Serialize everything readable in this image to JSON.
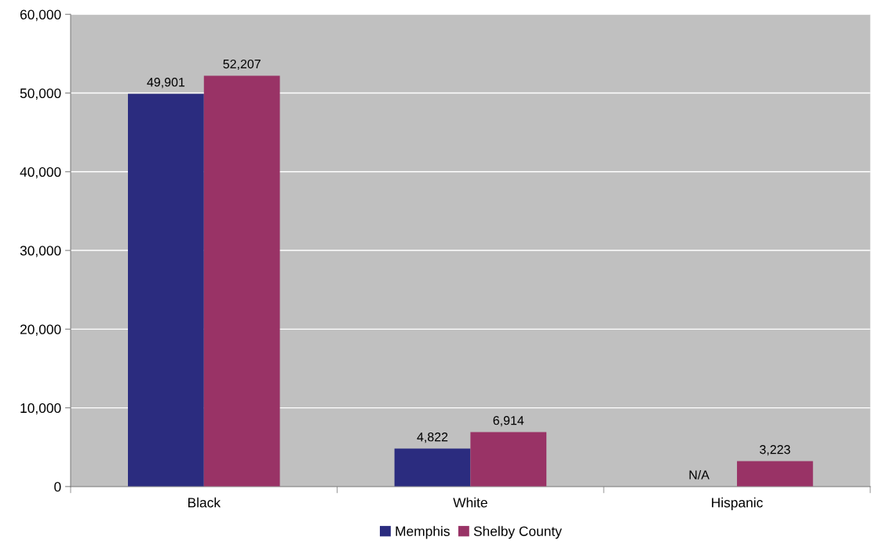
{
  "chart_data": {
    "type": "bar",
    "categories": [
      "Black",
      "White",
      "Hispanic"
    ],
    "series": [
      {
        "name": "Memphis",
        "color": "#2b2c7f",
        "values": [
          49901,
          4822,
          null
        ],
        "value_labels": [
          "49,901",
          "4,822",
          "N/A"
        ]
      },
      {
        "name": "Shelby County",
        "color": "#993366",
        "values": [
          52207,
          6914,
          3223
        ],
        "value_labels": [
          "52,207",
          "6,914",
          "3,223"
        ]
      }
    ],
    "ylim": [
      0,
      60000
    ],
    "yticks": [
      0,
      {
        "value": 10000,
        "label": "10,000"
      },
      {
        "value": 20000,
        "label": "20,000"
      },
      {
        "value": 30000,
        "label": "30,000"
      },
      {
        "value": 40000,
        "label": "40,000"
      },
      {
        "value": 50000,
        "label": "50,000"
      },
      {
        "value": 60000,
        "label": "60,000"
      }
    ],
    "grid": "y",
    "legend": "bottom"
  }
}
